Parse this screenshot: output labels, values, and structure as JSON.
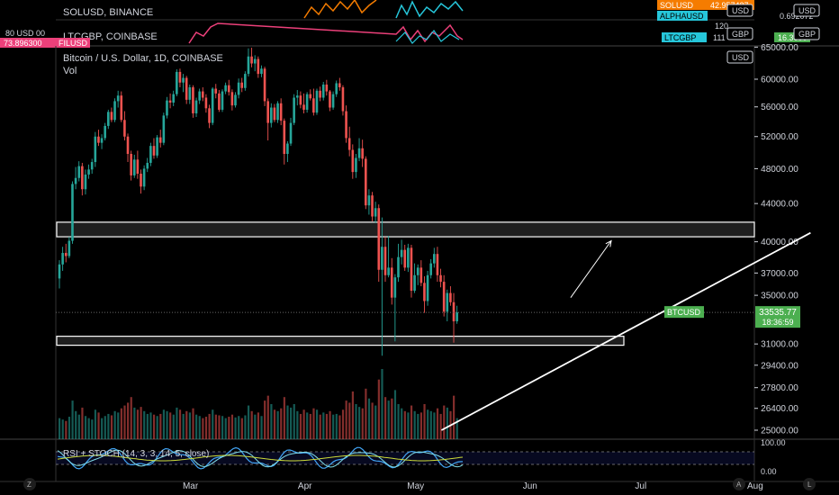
{
  "mini_panes": {
    "pane1_label": "SOLUSD, BINANCE",
    "pane2_label": "LTCGBP, COINBASE",
    "left_tag1": "80 USD 00",
    "left_tag2": "73.896300",
    "left_tag2_badge": "FILUSD",
    "right_badges": [
      {
        "label": "SOLUSD",
        "value": "42.957427",
        "color": "#f57c00"
      },
      {
        "label": "ALPHAUSD",
        "value": "0.689672",
        "color": "#26c6da"
      },
      {
        "label": "LTCGBP",
        "value": "111",
        "color": "#26c6da"
      }
    ],
    "scale_labels": [
      "120",
      "USD",
      "GBP"
    ],
    "right_values": [
      "0.692072",
      "16.3000"
    ],
    "far_right_units": [
      "USD",
      "GBP"
    ]
  },
  "main": {
    "title": "Bitcoin / U.S. Dollar, 1D, COINBASE",
    "vol_label": "Vol",
    "unit": "USD",
    "price_badge": {
      "symbol": "BTCUSD",
      "price": "33535.77",
      "countdown": "18:36:59"
    }
  },
  "rsi": {
    "label": "RSI + STOCH (14, 3, 3, 14, 5, close)",
    "ticks": [
      "100.00",
      "0.00"
    ]
  },
  "bottom_bar": {
    "left_button": "Z",
    "right_buttons": [
      "A",
      "L"
    ]
  },
  "colors": {
    "up": "#26a69a",
    "down": "#ef5350",
    "bg": "#000000",
    "axis": "#d1d4dc",
    "badge": "#4caf50"
  },
  "chart_data": {
    "type": "candlestick",
    "title": "Bitcoin / U.S. Dollar, 1D, COINBASE",
    "y_ticks": [
      "65000.00",
      "60000.00",
      "56000.00",
      "52000.00",
      "48000.00",
      "44000.00",
      "40000.00",
      "37000.00",
      "35000.00",
      "31000.00",
      "29400.00",
      "27800.00",
      "26400.00",
      "25000.00"
    ],
    "x_ticks": [
      "Mar",
      "Apr",
      "May",
      "Jun",
      "Jul",
      "Aug"
    ],
    "y_scale": "log",
    "ohlc": [
      [
        36500,
        38200,
        35600,
        37800
      ],
      [
        37800,
        39500,
        37200,
        38900
      ],
      [
        38900,
        39800,
        38000,
        38600
      ],
      [
        38600,
        40500,
        38400,
        40100
      ],
      [
        40100,
        46500,
        39800,
        46200
      ],
      [
        46200,
        48200,
        45600,
        46900
      ],
      [
        46900,
        48900,
        46500,
        48300
      ],
      [
        48300,
        48700,
        44900,
        45600
      ],
      [
        45600,
        47900,
        45000,
        47300
      ],
      [
        47300,
        48500,
        46800,
        47900
      ],
      [
        47900,
        49200,
        47400,
        48800
      ],
      [
        48800,
        52600,
        48200,
        52000
      ],
      [
        52000,
        52900,
        50800,
        51200
      ],
      [
        51200,
        52300,
        50400,
        51800
      ],
      [
        51800,
        53800,
        51500,
        53400
      ],
      [
        53400,
        55600,
        53000,
        55300
      ],
      [
        55300,
        55900,
        53900,
        54200
      ],
      [
        54200,
        57200,
        53900,
        56800
      ],
      [
        56800,
        58300,
        55900,
        57600
      ],
      [
        57600,
        58200,
        53900,
        54200
      ],
      [
        54200,
        55400,
        51500,
        52000
      ],
      [
        52000,
        52400,
        48800,
        49800
      ],
      [
        49800,
        50200,
        46600,
        47200
      ],
      [
        47200,
        49700,
        46900,
        49100
      ],
      [
        49100,
        50200,
        46800,
        47400
      ],
      [
        47400,
        47900,
        45100,
        45900
      ],
      [
        45900,
        48400,
        45500,
        48000
      ],
      [
        48000,
        49300,
        47600,
        48700
      ],
      [
        48700,
        51200,
        48300,
        50800
      ],
      [
        50800,
        51800,
        49200,
        49600
      ],
      [
        49600,
        52200,
        49300,
        51900
      ],
      [
        51900,
        52900,
        50600,
        51200
      ],
      [
        51200,
        55200,
        50900,
        54800
      ],
      [
        54800,
        57400,
        54400,
        56900
      ],
      [
        56900,
        57900,
        55800,
        56600
      ],
      [
        56600,
        58300,
        56100,
        57800
      ],
      [
        57800,
        61500,
        57500,
        61100
      ],
      [
        61100,
        61600,
        58800,
        59500
      ],
      [
        59500,
        60800,
        58100,
        60200
      ],
      [
        60200,
        60500,
        56400,
        57000
      ],
      [
        57000,
        59200,
        56400,
        58800
      ],
      [
        58800,
        59100,
        54500,
        55100
      ],
      [
        55100,
        57300,
        54600,
        56900
      ],
      [
        56900,
        58600,
        56400,
        58200
      ],
      [
        58200,
        58800,
        56800,
        57300
      ],
      [
        57300,
        57800,
        55200,
        55800
      ],
      [
        55800,
        56300,
        53100,
        53800
      ],
      [
        53800,
        58800,
        53500,
        58600
      ],
      [
        58600,
        59300,
        57200,
        57900
      ],
      [
        57900,
        58400,
        55300,
        55600
      ],
      [
        55600,
        58500,
        55300,
        58200
      ],
      [
        58200,
        59500,
        57800,
        59100
      ],
      [
        59100,
        59900,
        57600,
        58100
      ],
      [
        58100,
        58500,
        55500,
        56200
      ],
      [
        56200,
        58100,
        55900,
        57700
      ],
      [
        57700,
        60100,
        57200,
        59500
      ],
      [
        59500,
        60200,
        58100,
        58700
      ],
      [
        58700,
        61200,
        58300,
        60800
      ],
      [
        60800,
        64800,
        60400,
        63500
      ],
      [
        63500,
        64900,
        61800,
        62400
      ],
      [
        62400,
        63700,
        61200,
        63100
      ],
      [
        63100,
        63500,
        60200,
        60800
      ],
      [
        60800,
        62100,
        60300,
        61600
      ],
      [
        61600,
        61900,
        56100,
        56800
      ],
      [
        56800,
        57200,
        51500,
        53800
      ],
      [
        53800,
        56500,
        53200,
        55900
      ],
      [
        55900,
        56400,
        53900,
        54200
      ],
      [
        54200,
        56800,
        53800,
        56500
      ],
      [
        56500,
        57200,
        53500,
        54100
      ],
      [
        54100,
        54400,
        48500,
        49800
      ],
      [
        49800,
        51400,
        48800,
        51100
      ],
      [
        51100,
        54500,
        50800,
        53800
      ],
      [
        53800,
        57800,
        53500,
        57300
      ],
      [
        57300,
        58400,
        56200,
        57600
      ],
      [
        57600,
        58200,
        55800,
        56300
      ],
      [
        56300,
        57900,
        55100,
        55600
      ],
      [
        55600,
        58100,
        55200,
        57800
      ],
      [
        57800,
        58500,
        56900,
        57200
      ],
      [
        57200,
        58600,
        54800,
        55200
      ],
      [
        55200,
        58600,
        54900,
        58300
      ],
      [
        58300,
        58900,
        56800,
        57300
      ],
      [
        57300,
        59600,
        56900,
        59200
      ],
      [
        59200,
        59900,
        57600,
        58200
      ],
      [
        58200,
        58400,
        55400,
        55900
      ],
      [
        55900,
        58200,
        55600,
        57800
      ],
      [
        57800,
        59800,
        57400,
        59400
      ],
      [
        59400,
        60200,
        58300,
        58800
      ],
      [
        58800,
        59100,
        54800,
        55400
      ],
      [
        55400,
        56200,
        51200,
        51800
      ],
      [
        51800,
        53300,
        49500,
        50300
      ],
      [
        50300,
        51000,
        46800,
        47600
      ],
      [
        47600,
        49800,
        46900,
        49300
      ],
      [
        49300,
        51800,
        48900,
        50500
      ],
      [
        50500,
        51600,
        48200,
        49200
      ],
      [
        49200,
        49500,
        43400,
        43800
      ],
      [
        43800,
        45600,
        42800,
        44900
      ],
      [
        44900,
        45300,
        42100,
        42600
      ],
      [
        42600,
        44200,
        41900,
        43500
      ],
      [
        43500,
        43900,
        36200,
        37300
      ],
      [
        37300,
        42500,
        30100,
        39500
      ],
      [
        39500,
        40500,
        36200,
        36800
      ],
      [
        36800,
        40600,
        36600,
        37500
      ],
      [
        37500,
        38400,
        34200,
        34800
      ],
      [
        34800,
        36900,
        31200,
        36600
      ],
      [
        36600,
        39800,
        36200,
        38500
      ],
      [
        38500,
        40200,
        37800,
        39200
      ],
      [
        39200,
        39700,
        37200,
        37500
      ],
      [
        37500,
        39800,
        37100,
        39400
      ],
      [
        39400,
        39700,
        34800,
        35400
      ],
      [
        35400,
        37900,
        35200,
        36800
      ],
      [
        36800,
        37800,
        35900,
        37500
      ],
      [
        37500,
        38200,
        35800,
        36100
      ],
      [
        36100,
        36700,
        33500,
        34500
      ],
      [
        34500,
        37200,
        34100,
        36800
      ],
      [
        36800,
        38300,
        36500,
        37900
      ],
      [
        37900,
        39400,
        37500,
        38800
      ],
      [
        38800,
        39500,
        36200,
        36800
      ],
      [
        36800,
        37400,
        35700,
        36200
      ],
      [
        36200,
        36800,
        33200,
        33600
      ],
      [
        33600,
        35500,
        32800,
        35200
      ],
      [
        35200,
        35800,
        34100,
        34400
      ],
      [
        34400,
        35200,
        31100,
        32800
      ],
      [
        32800,
        34100,
        32600,
        33535
      ]
    ],
    "volume_relative": [
      0.3,
      0.28,
      0.26,
      0.32,
      0.55,
      0.4,
      0.35,
      0.45,
      0.33,
      0.3,
      0.28,
      0.42,
      0.38,
      0.3,
      0.33,
      0.36,
      0.34,
      0.4,
      0.38,
      0.44,
      0.48,
      0.52,
      0.6,
      0.45,
      0.42,
      0.46,
      0.4,
      0.36,
      0.38,
      0.35,
      0.33,
      0.36,
      0.42,
      0.4,
      0.38,
      0.35,
      0.45,
      0.42,
      0.36,
      0.4,
      0.38,
      0.44,
      0.35,
      0.33,
      0.3,
      0.32,
      0.36,
      0.42,
      0.35,
      0.34,
      0.33,
      0.3,
      0.32,
      0.35,
      0.31,
      0.33,
      0.3,
      0.34,
      0.48,
      0.4,
      0.35,
      0.38,
      0.33,
      0.55,
      0.62,
      0.5,
      0.42,
      0.4,
      0.44,
      0.6,
      0.48,
      0.45,
      0.5,
      0.4,
      0.36,
      0.42,
      0.38,
      0.36,
      0.44,
      0.42,
      0.35,
      0.38,
      0.36,
      0.4,
      0.35,
      0.36,
      0.34,
      0.42,
      0.55,
      0.52,
      0.68,
      0.5,
      0.46,
      0.44,
      0.72,
      0.58,
      0.52,
      0.48,
      0.85,
      1.0,
      0.6,
      0.55,
      0.58,
      0.7,
      0.5,
      0.44,
      0.4,
      0.38,
      0.48,
      0.4,
      0.36,
      0.38,
      0.5,
      0.42,
      0.4,
      0.38,
      0.44,
      0.36,
      0.48,
      0.45,
      0.4,
      0.62,
      0.3
    ],
    "support_zones": [
      [
        40500,
        42000
      ],
      [
        30900,
        31600
      ]
    ],
    "trendline": {
      "from": {
        "x": "2021-05-08",
        "y": 25000
      },
      "to": {
        "x": "2021-08-16",
        "y": 40900
      }
    },
    "projection_arrow": {
      "from": {
        "x": "2021-06-12",
        "y": 34800
      },
      "to": {
        "x": "2021-06-23",
        "y": 40100
      }
    },
    "last_price": 33535.77
  }
}
